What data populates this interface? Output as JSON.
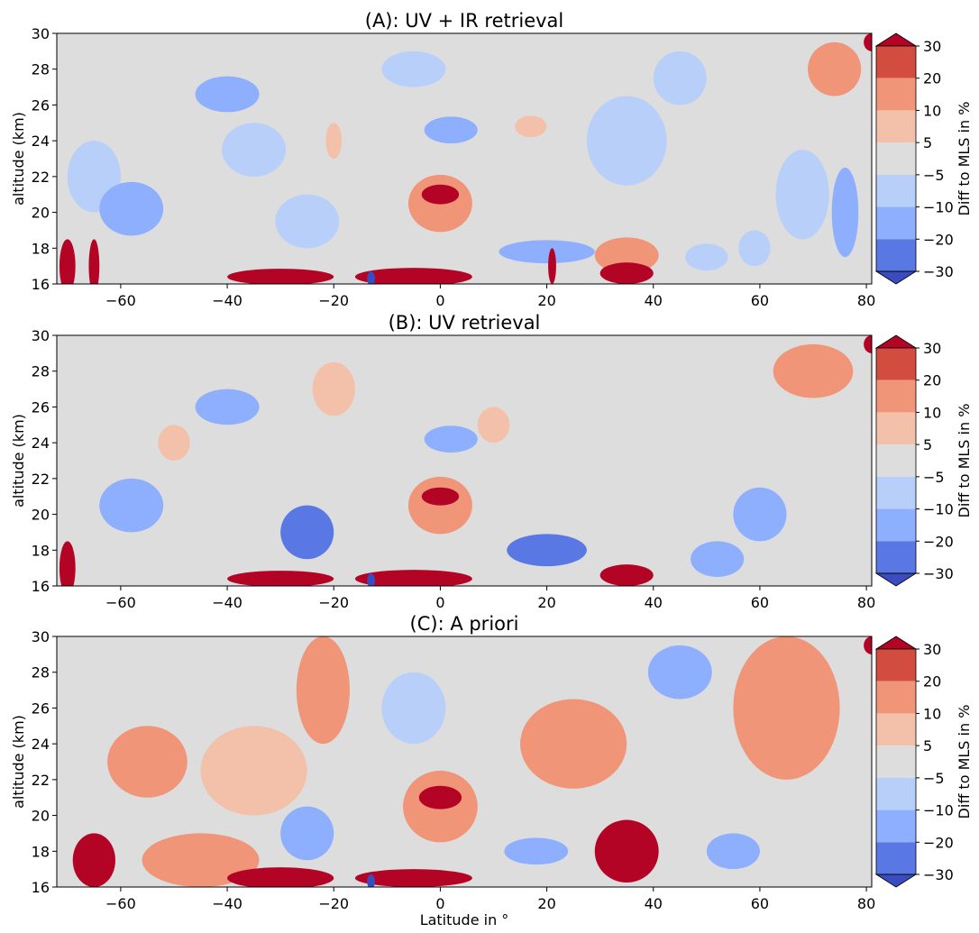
{
  "chart_data": [
    {
      "type": "heatmap",
      "title": "(A): UV + IR retrieval",
      "xlabel": "",
      "ylabel": "altitude (km)",
      "xlim": [
        -72,
        81
      ],
      "ylim": [
        16,
        30
      ],
      "xticks": [
        -60,
        -40,
        -20,
        0,
        20,
        40,
        60,
        80
      ],
      "yticks": [
        16,
        18,
        20,
        22,
        24,
        26,
        28,
        30
      ],
      "colorbar_label": "Diff to MLS in %",
      "colorbar_levels": [
        -30,
        -20,
        -10,
        -5,
        5,
        10,
        20,
        30
      ],
      "features": [
        {
          "lat": -58,
          "alt": 20.2,
          "value": -12,
          "w": 12,
          "h": 3.0
        },
        {
          "lat": -65,
          "alt": 22.0,
          "value": -8,
          "w": 10,
          "h": 4.0
        },
        {
          "lat": -40,
          "alt": 26.6,
          "value": -12,
          "w": 12,
          "h": 2.0
        },
        {
          "lat": -35,
          "alt": 23.5,
          "value": -7,
          "w": 12,
          "h": 3.0
        },
        {
          "lat": -25,
          "alt": 19.5,
          "value": -9,
          "w": 12,
          "h": 3.0
        },
        {
          "lat": -5,
          "alt": 28.0,
          "value": -8,
          "w": 12,
          "h": 2.0
        },
        {
          "lat": 2,
          "alt": 24.6,
          "value": -12,
          "w": 10,
          "h": 1.5
        },
        {
          "lat": 35,
          "alt": 24.0,
          "value": -6,
          "w": 15,
          "h": 5.0
        },
        {
          "lat": 45,
          "alt": 27.5,
          "value": -7,
          "w": 10,
          "h": 3.0
        },
        {
          "lat": 68,
          "alt": 21.0,
          "value": -7,
          "w": 10,
          "h": 5.0
        },
        {
          "lat": 76,
          "alt": 20.0,
          "value": -14,
          "w": 5,
          "h": 5.0
        },
        {
          "lat": 20,
          "alt": 17.8,
          "value": -18,
          "w": 18,
          "h": 1.3
        },
        {
          "lat": 50,
          "alt": 17.5,
          "value": -10,
          "w": 8,
          "h": 1.5
        },
        {
          "lat": 59,
          "alt": 18.0,
          "value": -8,
          "w": 6,
          "h": 2.0
        },
        {
          "lat": 0,
          "alt": 21.0,
          "value": 35,
          "w": 7,
          "h": 1.1
        },
        {
          "lat": 0,
          "alt": 20.5,
          "value": 12,
          "w": 12,
          "h": 3.2
        },
        {
          "lat": 17,
          "alt": 24.8,
          "value": 6,
          "w": 6,
          "h": 1.2
        },
        {
          "lat": -20,
          "alt": 24.0,
          "value": 6,
          "w": 3,
          "h": 2.0
        },
        {
          "lat": 74,
          "alt": 28.0,
          "value": 18,
          "w": 10,
          "h": 3.0
        },
        {
          "lat": 81,
          "alt": 29.5,
          "value": 40,
          "w": 3,
          "h": 1.0
        },
        {
          "lat": -30,
          "alt": 16.4,
          "value": 35,
          "w": 20,
          "h": 0.9
        },
        {
          "lat": -5,
          "alt": 16.4,
          "value": 35,
          "w": 22,
          "h": 1.0
        },
        {
          "lat": 35,
          "alt": 16.6,
          "value": 35,
          "w": 10,
          "h": 1.2
        },
        {
          "lat": 35,
          "alt": 17.6,
          "value": 15,
          "w": 12,
          "h": 2.0
        },
        {
          "lat": -70,
          "alt": 17.0,
          "value": 35,
          "w": 3,
          "h": 3.0
        },
        {
          "lat": -65,
          "alt": 17.0,
          "value": 35,
          "w": 2,
          "h": 3.0
        },
        {
          "lat": 21,
          "alt": 17.0,
          "value": 35,
          "w": 1.5,
          "h": 2.0
        },
        {
          "lat": -13,
          "alt": 16.3,
          "value": -40,
          "w": 1.5,
          "h": 0.8
        }
      ]
    },
    {
      "type": "heatmap",
      "title": "(B): UV retrieval",
      "xlabel": "",
      "ylabel": "altitude (km)",
      "xlim": [
        -72,
        81
      ],
      "ylim": [
        16,
        30
      ],
      "xticks": [
        -60,
        -40,
        -20,
        0,
        20,
        40,
        60,
        80
      ],
      "yticks": [
        16,
        18,
        20,
        22,
        24,
        26,
        28,
        30
      ],
      "colorbar_label": "Diff to MLS in %",
      "colorbar_levels": [
        -30,
        -20,
        -10,
        -5,
        5,
        10,
        20,
        30
      ],
      "features": [
        {
          "lat": -58,
          "alt": 20.5,
          "value": -12,
          "w": 12,
          "h": 3.0
        },
        {
          "lat": -25,
          "alt": 19.0,
          "value": -22,
          "w": 10,
          "h": 3.0
        },
        {
          "lat": -40,
          "alt": 26.0,
          "value": -12,
          "w": 12,
          "h": 2.0
        },
        {
          "lat": 2,
          "alt": 24.2,
          "value": -12,
          "w": 10,
          "h": 1.5
        },
        {
          "lat": 20,
          "alt": 18.0,
          "value": -22,
          "w": 15,
          "h": 1.8
        },
        {
          "lat": 52,
          "alt": 17.5,
          "value": -15,
          "w": 10,
          "h": 2.0
        },
        {
          "lat": 60,
          "alt": 20.0,
          "value": -12,
          "w": 10,
          "h": 3.0
        },
        {
          "lat": 0,
          "alt": 21.0,
          "value": 35,
          "w": 7,
          "h": 1.0
        },
        {
          "lat": 0,
          "alt": 20.5,
          "value": 14,
          "w": 12,
          "h": 3.2
        },
        {
          "lat": -20,
          "alt": 27.0,
          "value": 7,
          "w": 8,
          "h": 3.0
        },
        {
          "lat": -50,
          "alt": 24.0,
          "value": 7,
          "w": 6,
          "h": 2.0
        },
        {
          "lat": 10,
          "alt": 25.0,
          "value": 7,
          "w": 6,
          "h": 2.0
        },
        {
          "lat": 70,
          "alt": 28.0,
          "value": 15,
          "w": 15,
          "h": 3.0
        },
        {
          "lat": 81,
          "alt": 29.5,
          "value": 40,
          "w": 3,
          "h": 1.0
        },
        {
          "lat": -30,
          "alt": 16.4,
          "value": 35,
          "w": 20,
          "h": 0.9
        },
        {
          "lat": -5,
          "alt": 16.4,
          "value": 35,
          "w": 22,
          "h": 1.0
        },
        {
          "lat": 35,
          "alt": 16.6,
          "value": 35,
          "w": 10,
          "h": 1.2
        },
        {
          "lat": -70,
          "alt": 17.0,
          "value": 35,
          "w": 3,
          "h": 3.0
        },
        {
          "lat": -13,
          "alt": 16.3,
          "value": -40,
          "w": 1.5,
          "h": 0.8
        }
      ]
    },
    {
      "type": "heatmap",
      "title": "(C): A priori",
      "xlabel": "Latitude in °",
      "ylabel": "altitude (km)",
      "xlim": [
        -72,
        81
      ],
      "ylim": [
        16,
        30
      ],
      "xticks": [
        -60,
        -40,
        -20,
        0,
        20,
        40,
        60,
        80
      ],
      "yticks": [
        16,
        18,
        20,
        22,
        24,
        26,
        28,
        30
      ],
      "colorbar_label": "Diff to MLS in %",
      "colorbar_levels": [
        -30,
        -20,
        -10,
        -5,
        5,
        10,
        20,
        30
      ],
      "features": [
        {
          "lat": -55,
          "alt": 23.0,
          "value": 12,
          "w": 15,
          "h": 4.0
        },
        {
          "lat": -35,
          "alt": 22.5,
          "value": 8,
          "w": 20,
          "h": 5.0
        },
        {
          "lat": -22,
          "alt": 27.0,
          "value": 12,
          "w": 10,
          "h": 6.0
        },
        {
          "lat": 25,
          "alt": 24.0,
          "value": 12,
          "w": 20,
          "h": 5.0
        },
        {
          "lat": 65,
          "alt": 26.0,
          "value": 12,
          "w": 20,
          "h": 8.0
        },
        {
          "lat": -25,
          "alt": 19.0,
          "value": -20,
          "w": 10,
          "h": 3.0
        },
        {
          "lat": -5,
          "alt": 26.0,
          "value": -7,
          "w": 12,
          "h": 4.0
        },
        {
          "lat": 45,
          "alt": 28.0,
          "value": -12,
          "w": 12,
          "h": 3.0
        },
        {
          "lat": 55,
          "alt": 18.0,
          "value": -12,
          "w": 10,
          "h": 2.0
        },
        {
          "lat": 18,
          "alt": 18.0,
          "value": -15,
          "w": 12,
          "h": 1.5
        },
        {
          "lat": 0,
          "alt": 21.0,
          "value": 35,
          "w": 8,
          "h": 1.3
        },
        {
          "lat": 0,
          "alt": 20.5,
          "value": 14,
          "w": 14,
          "h": 4.0
        },
        {
          "lat": 35,
          "alt": 18.0,
          "value": 35,
          "w": 12,
          "h": 3.5
        },
        {
          "lat": -45,
          "alt": 17.5,
          "value": 14,
          "w": 22,
          "h": 3.0
        },
        {
          "lat": -30,
          "alt": 16.5,
          "value": 35,
          "w": 20,
          "h": 1.2
        },
        {
          "lat": -5,
          "alt": 16.5,
          "value": 35,
          "w": 22,
          "h": 1.0
        },
        {
          "lat": -65,
          "alt": 17.5,
          "value": 35,
          "w": 8,
          "h": 3.0
        },
        {
          "lat": 81,
          "alt": 29.5,
          "value": 40,
          "w": 3,
          "h": 1.0
        },
        {
          "lat": -13,
          "alt": 16.3,
          "value": -40,
          "w": 1.5,
          "h": 0.8
        }
      ]
    }
  ],
  "colorbar": {
    "levels": [
      -30,
      -20,
      -10,
      -5,
      5,
      10,
      20,
      30
    ],
    "tick_labels": [
      "−30",
      "−20",
      "−10",
      "−5",
      "5",
      "10",
      "20",
      "30"
    ],
    "colors": [
      "#3b4cc0",
      "#5a78e4",
      "#8daffd",
      "#b7cff9",
      "#dddddd",
      "#f3c1aa",
      "#f09577",
      "#d24d3f",
      "#b40426"
    ],
    "neutral_color": "#dddddd"
  }
}
